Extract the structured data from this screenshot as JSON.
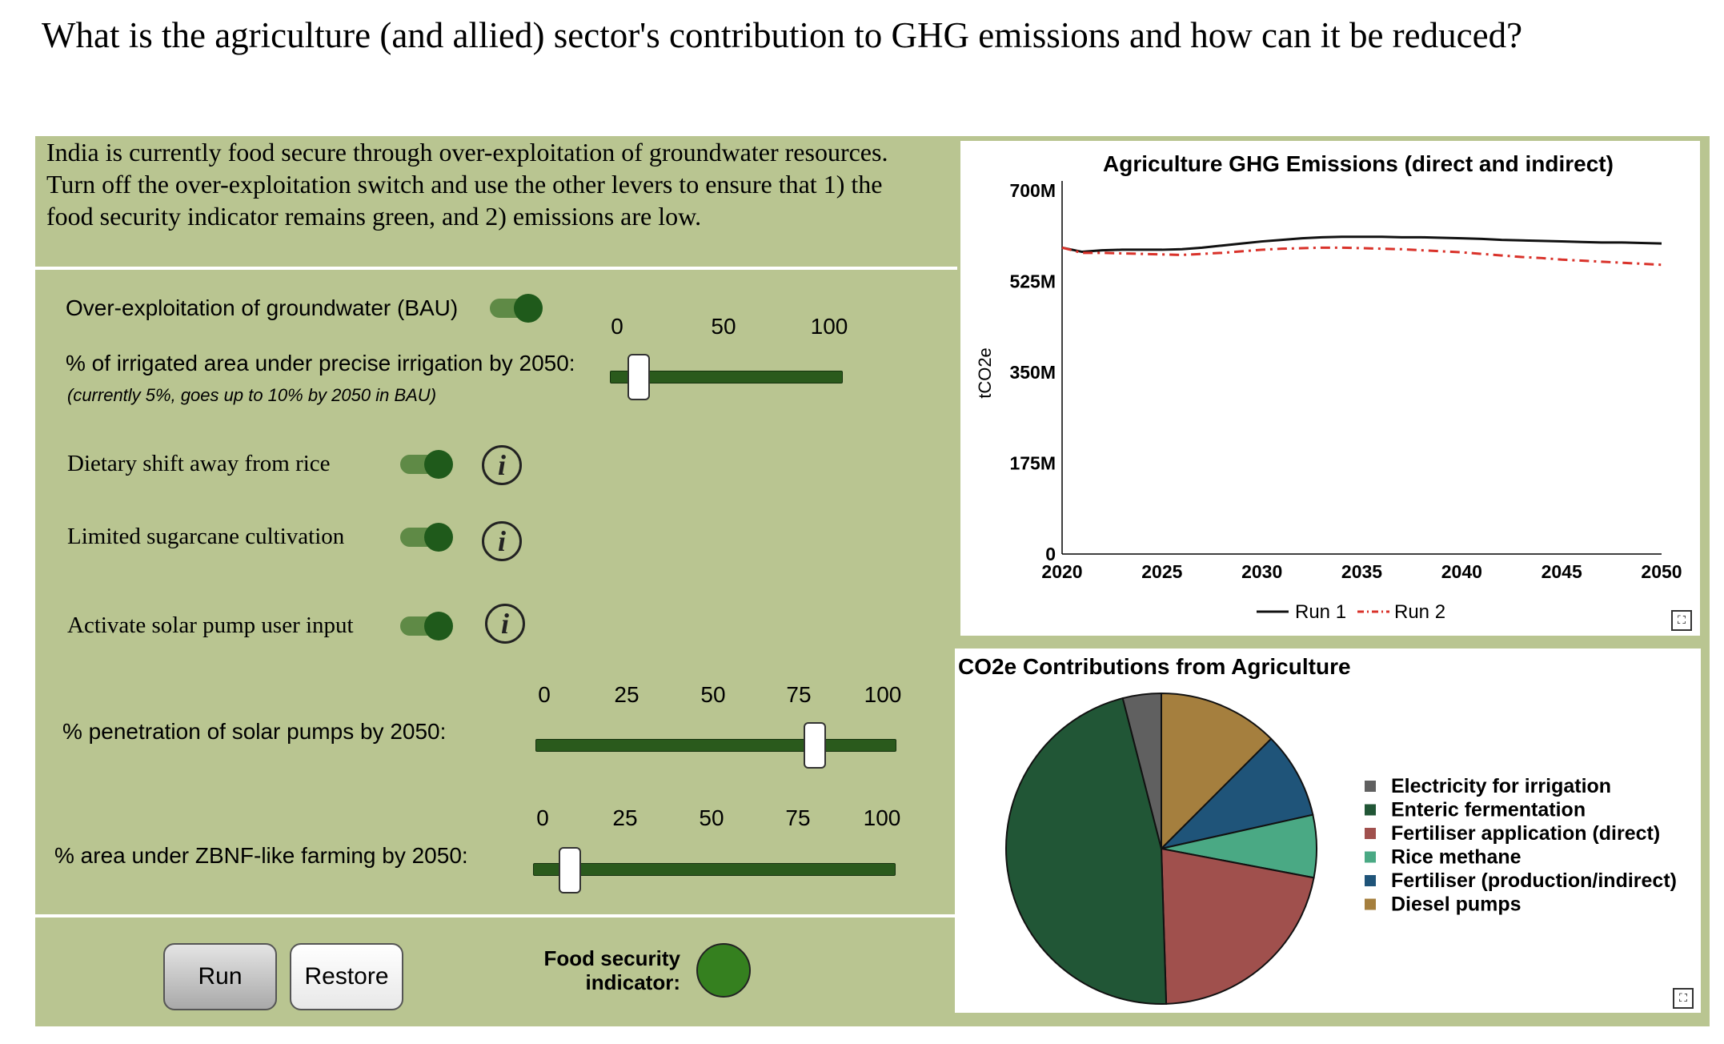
{
  "title": "What is the agriculture (and allied) sector's contribution to GHG emissions and how can it be reduced?",
  "instructions": "India is currently food secure through over-exploitation of groundwater resources. Turn off the over-exploitation switch and use the other levers to ensure that 1) the food security indicator remains green, and 2) emissions are low.",
  "controls": {
    "groundwater_label": "Over-exploitation of groundwater (BAU)",
    "groundwater_on": true,
    "irrigation_label": "% of irrigated area under precise irrigation by 2050:",
    "irrigation_note": "(currently 5%, goes up to 10% by 2050 in BAU)",
    "irrigation_ticks": [
      "0",
      "50",
      "100"
    ],
    "irrigation_value": 10,
    "dietary_label": "Dietary shift away from rice",
    "dietary_on": true,
    "sugarcane_label": "Limited sugarcane cultivation",
    "sugarcane_on": true,
    "solar_input_label": "Activate solar pump user input",
    "solar_input_on": true,
    "info_glyph": "i",
    "solar_label": "% penetration of solar pumps by 2050:",
    "solar_ticks": [
      "0",
      "25",
      "50",
      "75",
      "100"
    ],
    "solar_value": 80,
    "zbnf_label": "% area under ZBNF-like farming by 2050:",
    "zbnf_ticks": [
      "0",
      "25",
      "50",
      "75",
      "100"
    ],
    "zbnf_value": 8
  },
  "buttons": {
    "run": "Run",
    "restore": "Restore"
  },
  "food_security": {
    "label_line1": "Food security",
    "label_line2": "indicator:",
    "status_color": "#35801f"
  },
  "chart_data": [
    {
      "type": "line",
      "title": "Agriculture GHG Emissions (direct and indirect)",
      "ylabel": "tCO2e",
      "xlabel": "",
      "x": [
        2020,
        2021,
        2022,
        2023,
        2024,
        2025,
        2026,
        2027,
        2028,
        2029,
        2030,
        2031,
        2032,
        2033,
        2034,
        2035,
        2036,
        2037,
        2038,
        2039,
        2040,
        2041,
        2042,
        2043,
        2044,
        2045,
        2046,
        2047,
        2048,
        2049,
        2050
      ],
      "xticks": [
        "2020",
        "2025",
        "2030",
        "2035",
        "2040",
        "2045",
        "2050"
      ],
      "xtick_values": [
        2020,
        2025,
        2030,
        2035,
        2040,
        2045,
        2050
      ],
      "yticks": [
        "0",
        "175M",
        "350M",
        "525M",
        "700M"
      ],
      "ytick_values": [
        0,
        175,
        350,
        525,
        700
      ],
      "ylim": [
        0,
        700
      ],
      "xlim": [
        2020,
        2050
      ],
      "units": "million tCO2e",
      "series": [
        {
          "name": "Run 1",
          "color": "#111111",
          "dash": "solid",
          "values": [
            590,
            582,
            585,
            586,
            586,
            586,
            587,
            590,
            594,
            598,
            602,
            605,
            608,
            610,
            611,
            611,
            611,
            610,
            610,
            609,
            608,
            607,
            605,
            604,
            603,
            602,
            601,
            600,
            600,
            599,
            598
          ]
        },
        {
          "name": "Run 2",
          "color": "#d9322a",
          "dash": "dash-dot",
          "values": [
            590,
            580,
            580,
            579,
            578,
            577,
            576,
            578,
            580,
            583,
            586,
            588,
            589,
            590,
            590,
            589,
            588,
            587,
            585,
            583,
            581,
            578,
            575,
            572,
            570,
            567,
            565,
            563,
            561,
            559,
            557
          ]
        }
      ],
      "legend": "bottom"
    },
    {
      "type": "pie",
      "title": "CO2e Contributions from Agriculture",
      "legend": "right",
      "labels": [
        "Electricity for irrigation",
        "Enteric fermentation",
        "Fertiliser application (direct)",
        "Rice methane",
        "Fertiliser (production/indirect)",
        "Diesel pumps"
      ],
      "values": [
        4.0,
        46.5,
        21.5,
        6.5,
        9.0,
        12.5
      ],
      "colors": [
        "#606060",
        "#215636",
        "#a0504d",
        "#4aa984",
        "#1f5479",
        "#a57f3e"
      ],
      "order_clockwise_from_top": [
        "Diesel pumps",
        "Fertiliser (production/indirect)",
        "Rice methane",
        "Fertiliser application (direct)",
        "Enteric fermentation",
        "Electricity for irrigation"
      ]
    }
  ]
}
